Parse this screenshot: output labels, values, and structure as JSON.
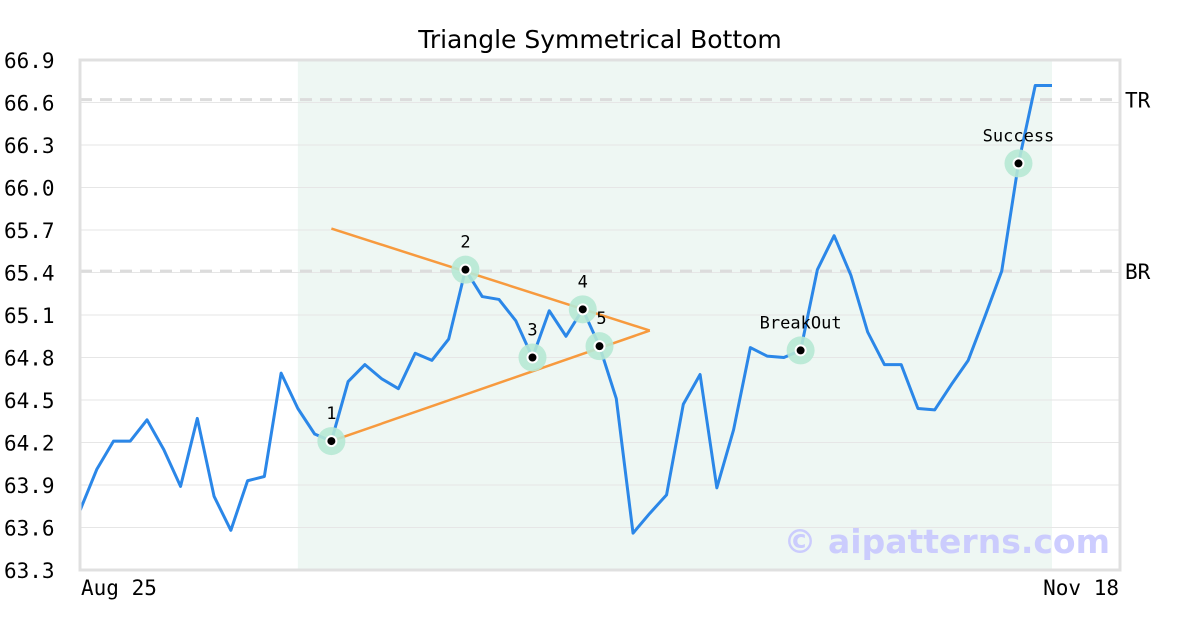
{
  "chart_data": {
    "type": "line",
    "title": "Triangle Symmetrical Bottom",
    "xlabel": "",
    "ylabel": "",
    "ylim": [
      63.3,
      66.9
    ],
    "yticks": [
      "63.3",
      "63.6",
      "63.9",
      "64.2",
      "64.5",
      "64.8",
      "65.1",
      "65.4",
      "65.7",
      "66.0",
      "66.3",
      "66.6",
      "66.9"
    ],
    "xtick_labels": [
      {
        "index": 0,
        "label": "Aug 25"
      },
      {
        "index": 58,
        "label": "Nov 18"
      }
    ],
    "grid": true,
    "series": [
      {
        "name": "price",
        "color": "#2b87e8",
        "values": [
          63.72,
          64.01,
          64.21,
          64.21,
          64.36,
          64.15,
          63.89,
          64.37,
          63.82,
          63.58,
          63.93,
          63.96,
          64.69,
          64.44,
          64.26,
          64.21,
          64.63,
          64.75,
          64.65,
          64.58,
          64.83,
          64.78,
          64.93,
          65.42,
          65.23,
          65.21,
          65.06,
          64.8,
          65.13,
          64.95,
          65.14,
          64.88,
          64.51,
          63.56,
          63.7,
          63.83,
          64.47,
          64.68,
          63.88,
          64.29,
          64.87,
          64.81,
          64.8,
          64.85,
          65.42,
          65.66,
          65.38,
          64.98,
          64.75,
          64.75,
          64.44,
          64.43,
          64.61,
          64.78,
          65.09,
          65.41,
          66.17,
          66.72,
          66.72
        ]
      }
    ],
    "shaded_region": {
      "start_index": 13,
      "end_index": 58,
      "color": "#eef7f3"
    },
    "markers": [
      {
        "index": 15,
        "label": "1",
        "label_pos": "above"
      },
      {
        "index": 23,
        "label": "2",
        "label_pos": "above"
      },
      {
        "index": 27,
        "label": "3",
        "label_pos": "above"
      },
      {
        "index": 30,
        "label": "4",
        "label_pos": "above"
      },
      {
        "index": 31,
        "label": "5",
        "label_pos": "above-near"
      },
      {
        "index": 43,
        "label": "BreakOut",
        "label_pos": "above"
      },
      {
        "index": 56,
        "label": "Success",
        "label_pos": "above"
      }
    ],
    "trendlines": [
      {
        "name": "upper",
        "color": "#f79a3e",
        "from": [
          15,
          65.71
        ],
        "to": [
          34,
          64.99
        ]
      },
      {
        "name": "lower",
        "color": "#f79a3e",
        "from": [
          15,
          64.21
        ],
        "to": [
          34,
          64.99
        ]
      }
    ],
    "hlines": [
      {
        "label": "TR",
        "value": 66.62
      },
      {
        "label": "BR",
        "value": 65.41
      }
    ],
    "watermark": "© aipatterns.com"
  }
}
